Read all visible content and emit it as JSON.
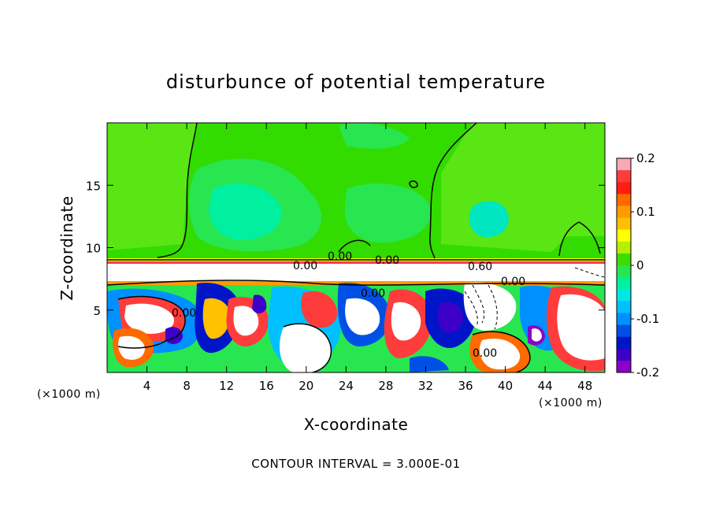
{
  "chart_data": {
    "type": "heatmap",
    "title": "disturbunce of potential temperature",
    "xlabel": "X-coordinate",
    "ylabel": "Z-coordinate",
    "x_unit": "(×1000 m)",
    "x_unit_right": "(×1000 m)",
    "xlim": [
      0,
      50
    ],
    "ylim": [
      0,
      20
    ],
    "x_ticks": [
      4,
      8,
      12,
      16,
      20,
      24,
      28,
      32,
      36,
      40,
      44,
      48
    ],
    "y_ticks": [
      5,
      10,
      15
    ],
    "colorbar": {
      "range": [
        -0.2,
        0.2
      ],
      "ticks": [
        "0.2",
        "0.1",
        "0",
        "-0.1",
        "-0.2"
      ],
      "colors": [
        "#f9a8b6",
        "#ff3c3c",
        "#ff1e10",
        "#ff6a00",
        "#ff9a00",
        "#ffc000",
        "#ffff00",
        "#b4f000",
        "#3cdc00",
        "#28e650",
        "#00f0a0",
        "#00e6e6",
        "#00c0ff",
        "#0090ff",
        "#0050e6",
        "#0014c8",
        "#3c00c8",
        "#8c00c8"
      ]
    },
    "contour_labels": [
      "0.00",
      "0.00",
      "0.00",
      "0.60",
      "0.00",
      "0.00",
      "0.00",
      "0.00"
    ],
    "contour_interval": "CONTOUR INTERVAL = 3.000E-01"
  }
}
